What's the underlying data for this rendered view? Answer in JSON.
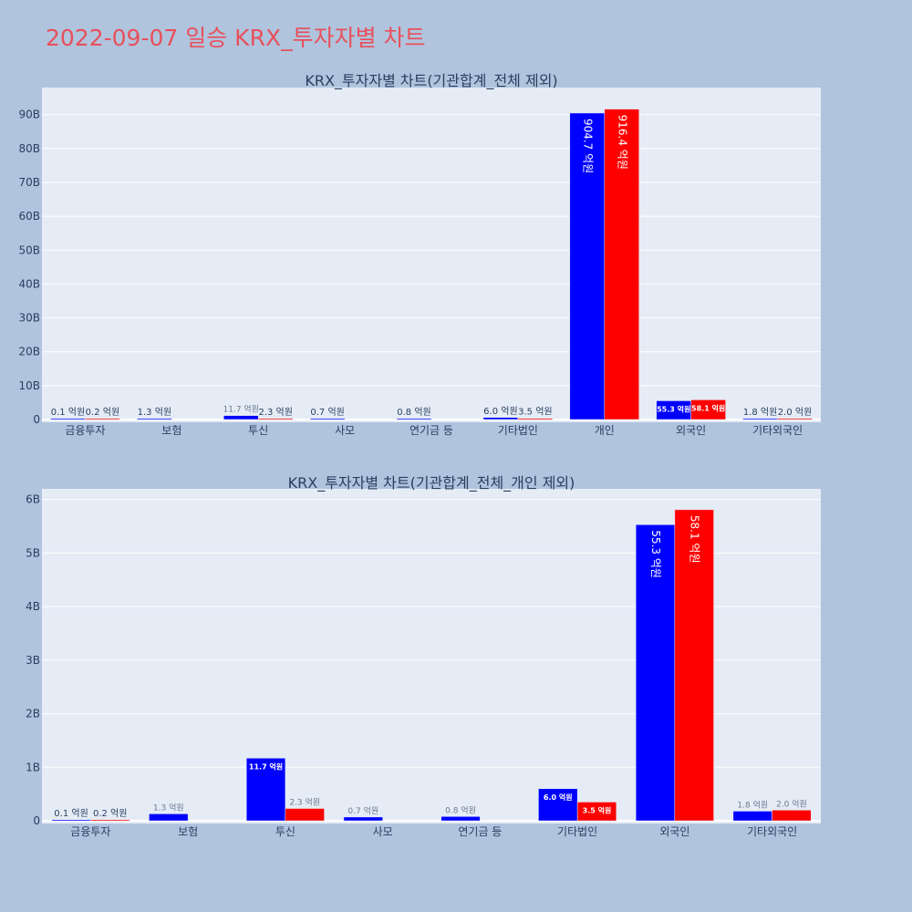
{
  "title": "2022-09-07 일승 KRX_투자자별 차트",
  "colors": {
    "page_bg": "#b0c4de",
    "plot_bg": "#e5ecf6",
    "title": "#e8505b",
    "series_a": "#0000ff",
    "series_b": "#ff0000",
    "text": "#2a3f5f"
  },
  "chart_data": [
    {
      "type": "bar",
      "title": "KRX_투자자별 차트(기관합계_전체 제외)",
      "categories": [
        "금융투자",
        "보험",
        "투신",
        "사모",
        "연기금 등",
        "기타법인",
        "개인",
        "외국인",
        "기타외국인"
      ],
      "ylim": [
        0,
        98
      ],
      "yticks": [
        0,
        10,
        20,
        30,
        40,
        50,
        60,
        70,
        80,
        90
      ],
      "ytick_labels": [
        "0",
        "10B",
        "20B",
        "30B",
        "40B",
        "50B",
        "60B",
        "70B",
        "80B",
        "90B"
      ],
      "grid": true,
      "series": [
        {
          "color": "#0000ff",
          "values": [
            0.01,
            0.13,
            1.17,
            0.07,
            0.08,
            0.6,
            90.47,
            5.53,
            0.18
          ],
          "labels": [
            "0.1 억원",
            "1.3 억원",
            "11.7 억원",
            "0.7 억원",
            "0.8 억원",
            "6.0 억원",
            "904.7 억원",
            "55.3 억원",
            "1.8 억원"
          ]
        },
        {
          "color": "#ff0000",
          "values": [
            0.02,
            null,
            0.23,
            null,
            null,
            0.35,
            91.64,
            5.81,
            0.2
          ],
          "labels": [
            "0.2 억원",
            "",
            "2.3 억원",
            "",
            "",
            "3.5 억원",
            "916.4 억원",
            "58.1 억원",
            "2.0 억원"
          ]
        }
      ]
    },
    {
      "type": "bar",
      "title": "KRX_투자자별 차트(기관합계_전체_개인 제외)",
      "categories": [
        "금융투자",
        "보험",
        "투신",
        "사모",
        "연기금 등",
        "기타법인",
        "외국인",
        "기타외국인"
      ],
      "ylim": [
        0,
        6.2
      ],
      "yticks": [
        0,
        1,
        2,
        3,
        4,
        5,
        6
      ],
      "ytick_labels": [
        "0",
        "1B",
        "2B",
        "3B",
        "4B",
        "5B",
        "6B"
      ],
      "grid": true,
      "series": [
        {
          "color": "#0000ff",
          "values": [
            0.01,
            0.13,
            1.17,
            0.07,
            0.08,
            0.6,
            5.53,
            0.18
          ],
          "labels": [
            "0.1 억원",
            "1.3 억원",
            "11.7 억원",
            "0.7 억원",
            "0.8 억원",
            "6.0 억원",
            "55.3 억원",
            "1.8 억원"
          ]
        },
        {
          "color": "#ff0000",
          "values": [
            0.02,
            null,
            0.23,
            null,
            null,
            0.35,
            5.81,
            0.2
          ],
          "labels": [
            "0.2 억원",
            "",
            "2.3 억원",
            "",
            "",
            "3.5 억원",
            "58.1 억원",
            "2.0 억원"
          ]
        }
      ]
    }
  ]
}
